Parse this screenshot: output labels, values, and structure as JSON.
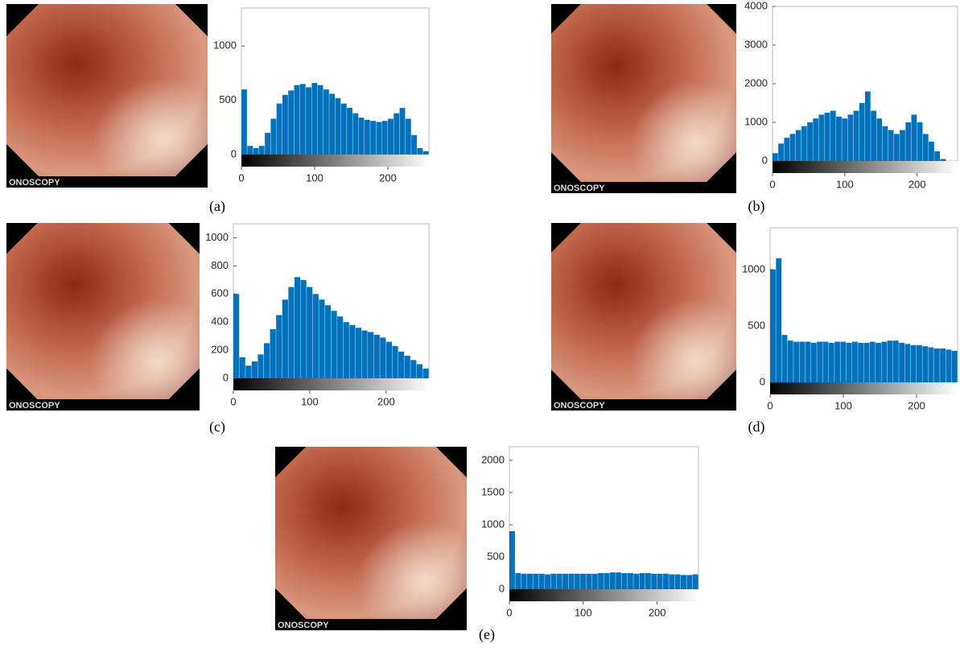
{
  "chart_data": [
    {
      "type": "histogram",
      "caption": "(a)",
      "image_text": "ONOSCOPY",
      "color": "#0072bd",
      "bins": [
        0,
        8,
        16,
        24,
        32,
        40,
        48,
        56,
        64,
        72,
        80,
        88,
        96,
        104,
        112,
        120,
        128,
        136,
        144,
        152,
        160,
        168,
        176,
        184,
        192,
        200,
        208,
        216,
        224,
        232,
        240,
        248,
        256
      ],
      "values": [
        600,
        80,
        60,
        80,
        200,
        330,
        470,
        550,
        590,
        640,
        650,
        620,
        660,
        640,
        600,
        560,
        520,
        470,
        430,
        380,
        340,
        320,
        310,
        300,
        310,
        330,
        380,
        430,
        330,
        180,
        60,
        30
      ],
      "xlim": [
        0,
        256
      ],
      "xticks": [
        0,
        100,
        200
      ],
      "ylim": [
        0,
        1350
      ],
      "yticks": [
        0,
        500,
        1000
      ]
    },
    {
      "type": "histogram",
      "caption": "(b)",
      "image_text": "ONOSCOPY",
      "color": "#0072bd",
      "bins": [
        0,
        8,
        16,
        24,
        32,
        40,
        48,
        56,
        64,
        72,
        80,
        88,
        96,
        104,
        112,
        120,
        128,
        136,
        144,
        152,
        160,
        168,
        176,
        184,
        192,
        200,
        208,
        216,
        224,
        232,
        240,
        248,
        256
      ],
      "values": [
        200,
        450,
        600,
        700,
        800,
        900,
        1000,
        1100,
        1200,
        1250,
        1300,
        1150,
        1100,
        1200,
        1300,
        1500,
        1800,
        1300,
        1100,
        900,
        800,
        700,
        800,
        1000,
        1200,
        1000,
        700,
        500,
        250,
        50,
        0,
        0
      ],
      "xlim": [
        0,
        256
      ],
      "xticks": [
        0,
        100,
        200
      ],
      "ylim": [
        0,
        4000
      ],
      "yticks": [
        0,
        1000,
        2000,
        3000,
        4000
      ]
    },
    {
      "type": "histogram",
      "caption": "(c)",
      "image_text": "ONOSCOPY",
      "color": "#0072bd",
      "bins": [
        0,
        8,
        16,
        24,
        32,
        40,
        48,
        56,
        64,
        72,
        80,
        88,
        96,
        104,
        112,
        120,
        128,
        136,
        144,
        152,
        160,
        168,
        176,
        184,
        192,
        200,
        208,
        216,
        224,
        232,
        240,
        248,
        256
      ],
      "values": [
        600,
        150,
        90,
        120,
        170,
        250,
        350,
        450,
        560,
        650,
        720,
        700,
        650,
        600,
        560,
        520,
        480,
        440,
        400,
        380,
        360,
        340,
        330,
        310,
        290,
        260,
        230,
        190,
        160,
        130,
        100,
        70
      ],
      "xlim": [
        0,
        256
      ],
      "xticks": [
        0,
        100,
        200
      ],
      "ylim": [
        0,
        1100
      ],
      "yticks": [
        0,
        200,
        400,
        600,
        800,
        1000
      ]
    },
    {
      "type": "histogram",
      "caption": "(d)",
      "image_text": "ONOSCOPY",
      "color": "#0072bd",
      "bins": [
        0,
        8,
        16,
        24,
        32,
        40,
        48,
        56,
        64,
        72,
        80,
        88,
        96,
        104,
        112,
        120,
        128,
        136,
        144,
        152,
        160,
        168,
        176,
        184,
        192,
        200,
        208,
        216,
        224,
        232,
        240,
        248,
        256
      ],
      "values": [
        1000,
        1100,
        420,
        370,
        360,
        360,
        360,
        350,
        360,
        360,
        350,
        360,
        360,
        350,
        360,
        350,
        350,
        360,
        350,
        360,
        370,
        370,
        350,
        340,
        330,
        330,
        320,
        310,
        300,
        300,
        290,
        280
      ],
      "xlim": [
        0,
        256
      ],
      "xticks": [
        0,
        100,
        200
      ],
      "ylim": [
        0,
        1370
      ],
      "yticks": [
        0,
        500,
        1000
      ]
    },
    {
      "type": "histogram",
      "caption": "(e)",
      "image_text": "ONOSCOPY",
      "color": "#0072bd",
      "bins": [
        0,
        8,
        16,
        24,
        32,
        40,
        48,
        56,
        64,
        72,
        80,
        88,
        96,
        104,
        112,
        120,
        128,
        136,
        144,
        152,
        160,
        168,
        176,
        184,
        192,
        200,
        208,
        216,
        224,
        232,
        240,
        248,
        256
      ],
      "values": [
        900,
        250,
        240,
        240,
        240,
        240,
        230,
        240,
        240,
        240,
        240,
        240,
        240,
        240,
        240,
        250,
        250,
        260,
        260,
        250,
        250,
        240,
        250,
        250,
        240,
        240,
        240,
        230,
        230,
        220,
        220,
        230
      ],
      "xlim": [
        0,
        256
      ],
      "xticks": [
        0,
        100,
        200
      ],
      "ylim": [
        0,
        2210
      ],
      "yticks": [
        0,
        500,
        1000,
        1500,
        2000
      ]
    }
  ]
}
